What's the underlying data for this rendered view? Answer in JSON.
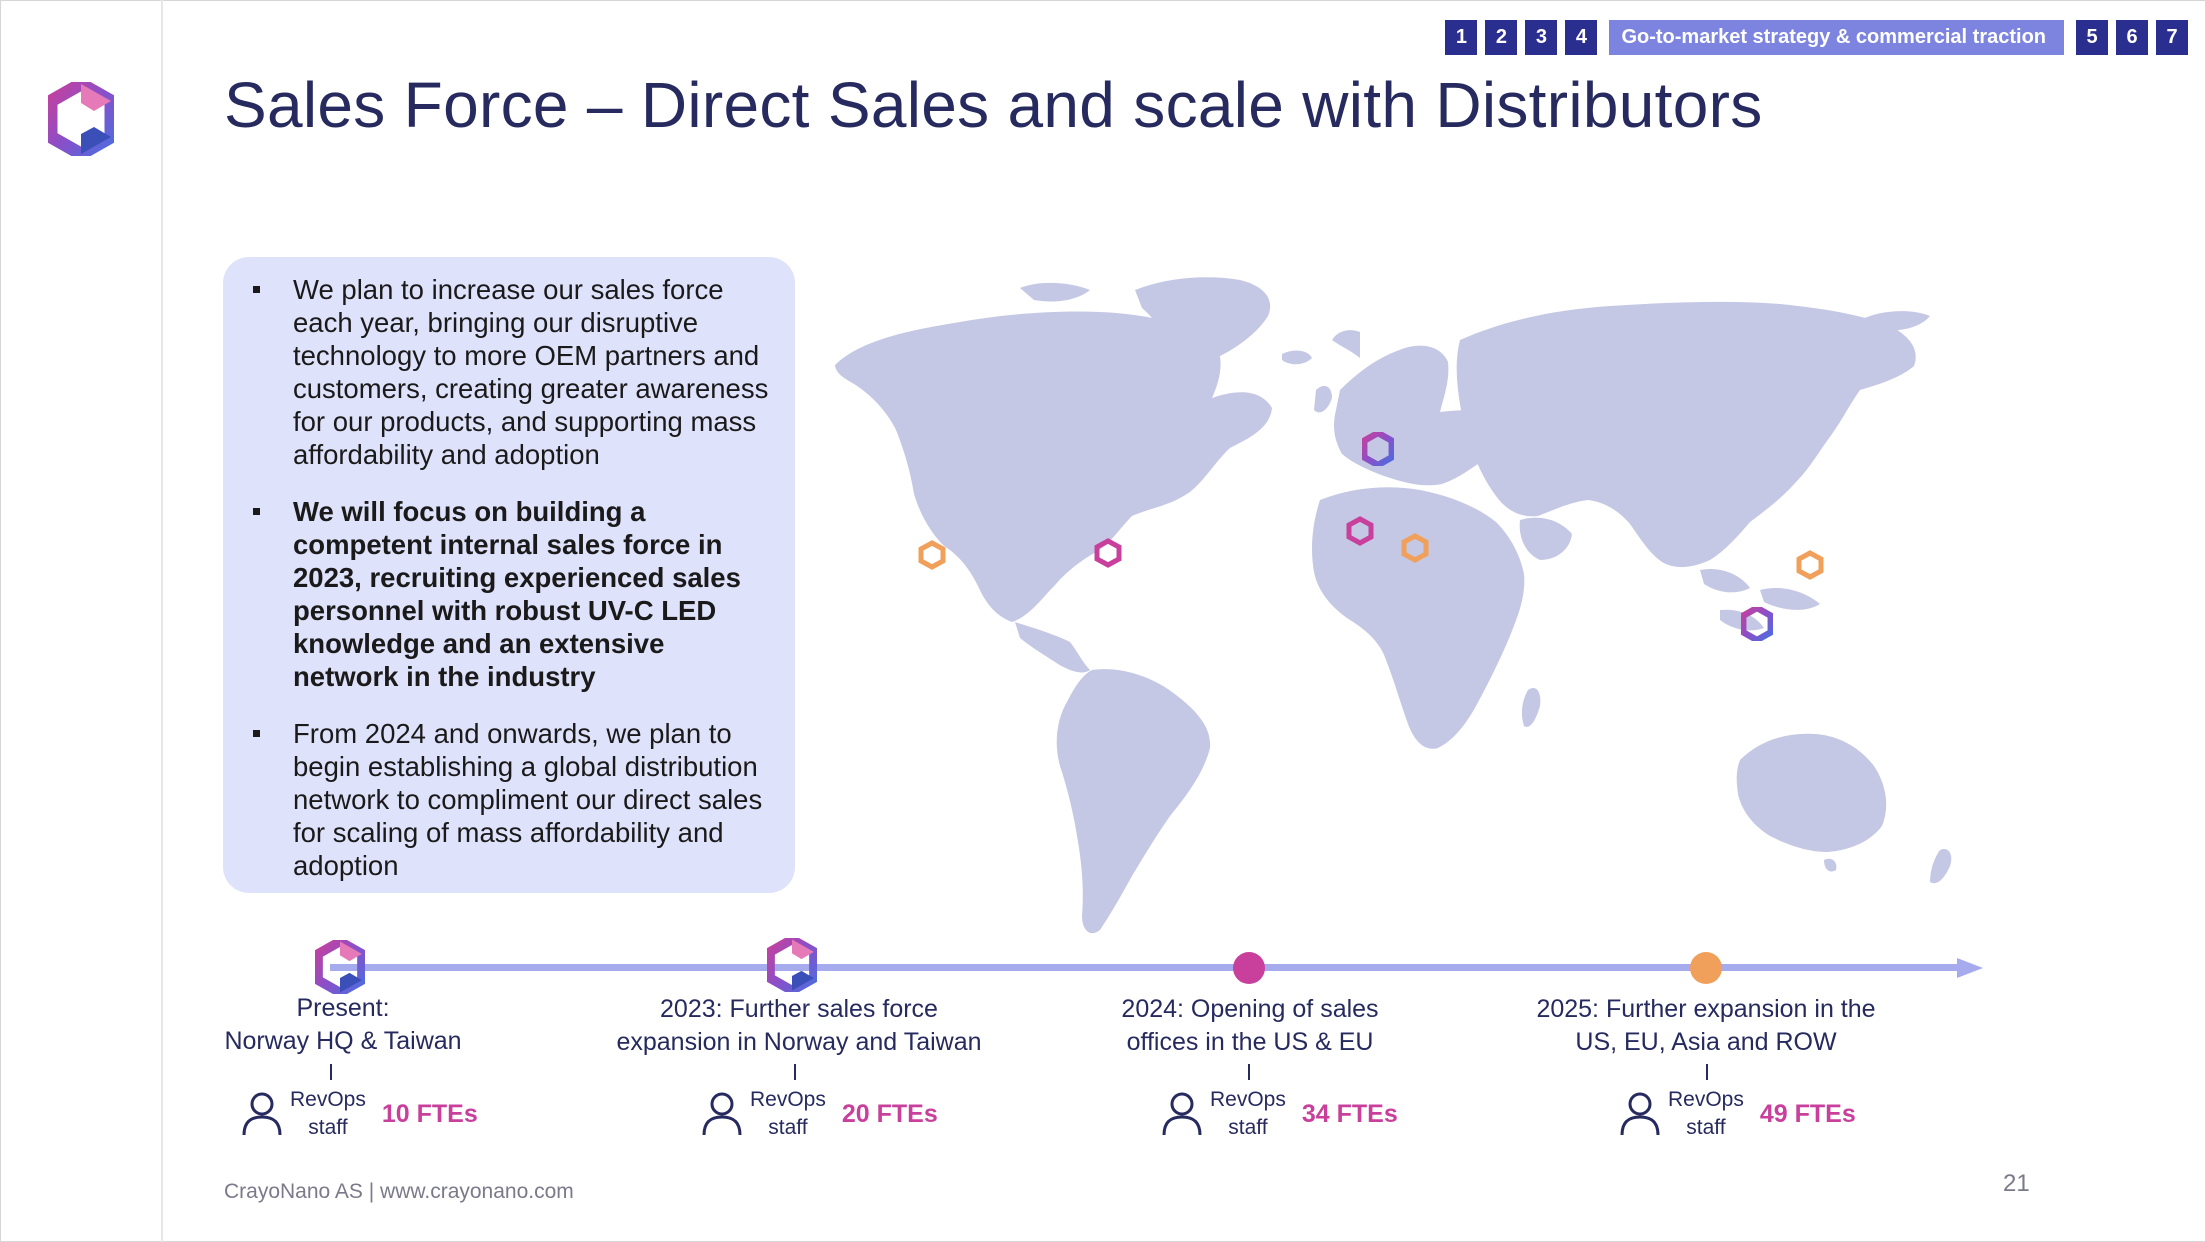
{
  "nav": {
    "pages": [
      "1",
      "2",
      "3",
      "4",
      "5",
      "6",
      "7"
    ],
    "section_label": "Go-to-market strategy & commercial traction"
  },
  "title": "Sales Force – Direct Sales and scale with Distributors",
  "bullets": [
    "We plan to increase our sales force each year, bringing our disruptive technology to more OEM partners and customers, creating greater awareness for our products, and supporting mass affordability and adoption",
    "We will focus on building a competent internal sales force in 2023, recruiting experienced sales personnel with robust UV-C LED knowledge and an extensive network in the industry",
    "From 2024 and onwards, we plan to begin establishing a global distribution network to compliment our direct sales for scaling of mass affordability and adoption"
  ],
  "map": {
    "icons": [
      {
        "name": "map-marker-us-west-icon",
        "kind": "ring",
        "color": "#f0a05a"
      },
      {
        "name": "map-marker-us-east-icon",
        "kind": "ring",
        "color": "#c8409c"
      },
      {
        "name": "map-marker-norway-icon",
        "kind": "logo"
      },
      {
        "name": "map-marker-europe-west-icon",
        "kind": "ring",
        "color": "#c8409c"
      },
      {
        "name": "map-marker-europe-east-icon",
        "kind": "ring",
        "color": "#f0a05a"
      },
      {
        "name": "map-marker-japan-icon",
        "kind": "ring",
        "color": "#f0a05a"
      },
      {
        "name": "map-marker-taiwan-icon",
        "kind": "logo"
      }
    ]
  },
  "timeline": [
    {
      "line1": "Present:",
      "line2": "Norway HQ & Taiwan",
      "rev1": "RevOps",
      "rev2": "staff",
      "fte": "10 FTEs",
      "marker": "logo"
    },
    {
      "line1": "2023: Further sales force",
      "line2": "expansion in Norway and Taiwan",
      "rev1": "RevOps",
      "rev2": "staff",
      "fte": "20 FTEs",
      "marker": "logo"
    },
    {
      "line1": "2024: Opening of sales",
      "line2": "offices in the US & EU",
      "rev1": "RevOps",
      "rev2": "staff",
      "fte": "34 FTEs",
      "marker": "dot",
      "color": "#c8409c"
    },
    {
      "line1": "2025: Further expansion in the",
      "line2": "US, EU, Asia and ROW",
      "rev1": "RevOps",
      "rev2": "staff",
      "fte": "49 FTEs",
      "marker": "dot",
      "color": "#f0a05a"
    }
  ],
  "footer": "CrayoNano AS | www.crayonano.com",
  "page_number": "21",
  "colors": {
    "navy": "#262a5e",
    "accent": "#7d84e0",
    "magenta": "#c8409c",
    "orange": "#f0a05a",
    "map": "#c5c8e4"
  }
}
